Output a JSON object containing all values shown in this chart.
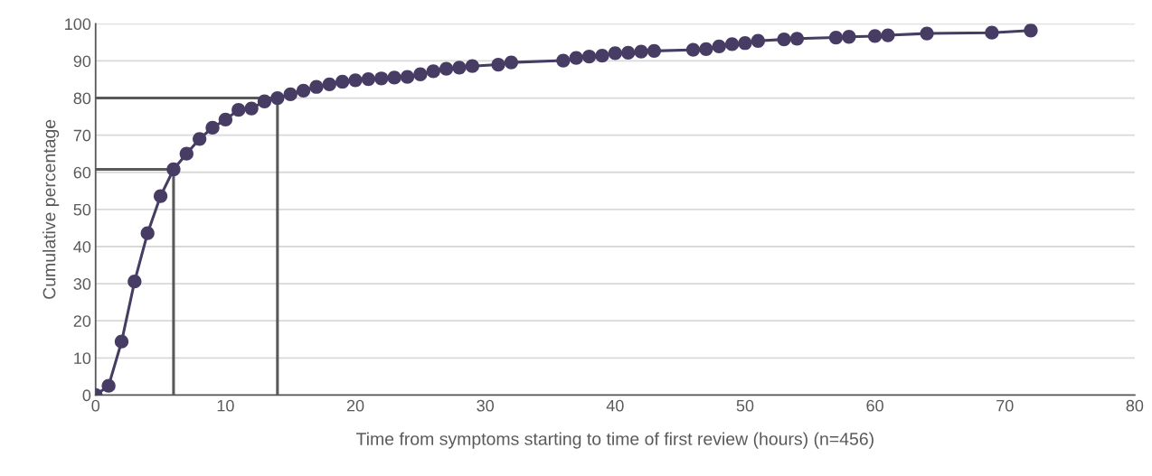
{
  "chart_data": {
    "type": "line",
    "xlabel": "Time from symptoms starting to time of first review (hours) (n=456)",
    "ylabel": "Cumulative percentage",
    "xlim": [
      0,
      80
    ],
    "xticks": [
      0,
      10,
      20,
      30,
      40,
      50,
      60,
      70,
      80
    ],
    "ylim": [
      0,
      100
    ],
    "yticks": [
      0,
      10,
      20,
      30,
      40,
      50,
      60,
      70,
      80,
      90,
      100
    ],
    "grid": "y",
    "marker": "circle",
    "line_style": "solid",
    "series": [
      {
        "color": "#463c64",
        "x": [
          0,
          1,
          2,
          3,
          4,
          5,
          6,
          7,
          8,
          9,
          10,
          11,
          12,
          13,
          14,
          15,
          16,
          17,
          18,
          19,
          20,
          21,
          22,
          23,
          24,
          25,
          26,
          27,
          28,
          29,
          31,
          32,
          36,
          37,
          38,
          39,
          40,
          41,
          42,
          43,
          46,
          47,
          48,
          49,
          50,
          51,
          53,
          54,
          57,
          58,
          60,
          61,
          64,
          69,
          72
        ],
        "values": [
          0,
          2.5,
          14.4,
          30.6,
          43.6,
          53.6,
          60.8,
          65,
          69,
          72,
          74.2,
          76.8,
          77.2,
          79.1,
          80,
          81,
          82,
          83,
          83.7,
          84.4,
          84.8,
          85.1,
          85.3,
          85.5,
          85.7,
          86.4,
          87.2,
          87.9,
          88.2,
          88.6,
          89,
          89.6,
          90.1,
          90.8,
          91.2,
          91.4,
          92.1,
          92.2,
          92.5,
          92.7,
          93,
          93.2,
          93.9,
          94.5,
          94.8,
          95.4,
          95.8,
          96,
          96.3,
          96.5,
          96.7,
          96.9,
          97.4,
          97.6,
          98.2
        ]
      },
      {
        "color": "#595959",
        "marker": "none",
        "x": [
          0,
          6,
          6
        ],
        "values": [
          60.8,
          60.8,
          0
        ]
      },
      {
        "color": "#595959",
        "marker": "none",
        "x": [
          0,
          14,
          14
        ],
        "values": [
          80,
          80,
          0
        ]
      }
    ]
  }
}
